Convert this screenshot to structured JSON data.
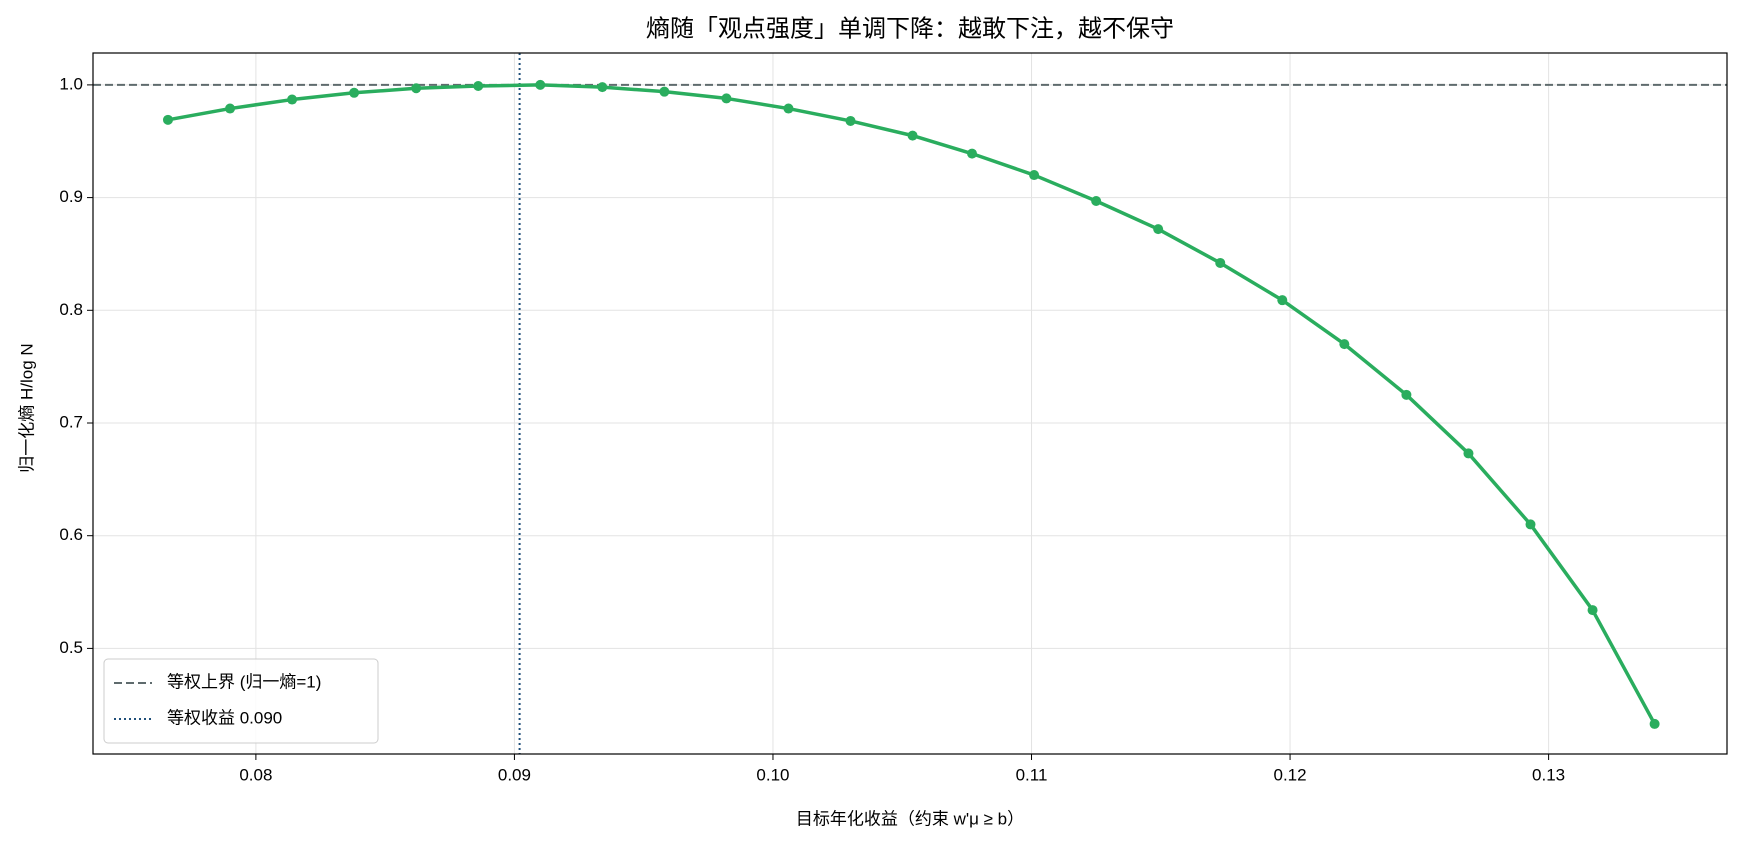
{
  "chart_data": {
    "type": "line",
    "title": "熵随「观点强度」单调下降：越敢下注，越不保守",
    "x_label": "目标年化收益（约束 w'μ ≥ b）",
    "y_label": "归一化熵 H/log N",
    "x": [
      0.0766,
      0.079,
      0.0814,
      0.0838,
      0.0862,
      0.0886,
      0.091,
      0.0934,
      0.0958,
      0.0982,
      0.1006,
      0.103,
      0.1054,
      0.1077,
      0.1101,
      0.1125,
      0.1149,
      0.1173,
      0.1197,
      0.1221,
      0.1245,
      0.1269,
      0.1293,
      0.1317,
      0.1341
    ],
    "series": [
      {
        "color": "#2aad5e",
        "values": [
          0.969,
          0.979,
          0.987,
          0.993,
          0.997,
          0.999,
          1.0,
          0.998,
          0.994,
          0.988,
          0.979,
          0.968,
          0.955,
          0.939,
          0.92,
          0.897,
          0.872,
          0.842,
          0.809,
          0.77,
          0.725,
          0.673,
          0.61,
          0.534,
          0.433
        ]
      }
    ],
    "reference_lines": [
      {
        "name": "等权上界 (归一熵=1)",
        "orientation": "horizontal",
        "value": 1,
        "color": "#5f6b6d",
        "style": "dashed"
      },
      {
        "name": "等权收益 0.090",
        "orientation": "vertical",
        "value": 0.0902,
        "color": "#1f4e79",
        "style": "dotted"
      }
    ],
    "xlim": [
      0.0737,
      0.1369
    ],
    "ylim": [
      0.4063,
      1.0283
    ],
    "xticks": [
      0.08,
      0.09,
      {
        "value": 0.1,
        "label": "0.10"
      },
      0.11,
      0.12,
      0.13
    ],
    "yticks": [
      0.5,
      0.6,
      0.7,
      0.8,
      0.9,
      {
        "value": 1,
        "label": "1.0"
      }
    ],
    "grid": true,
    "legend_position": "lower-left"
  }
}
